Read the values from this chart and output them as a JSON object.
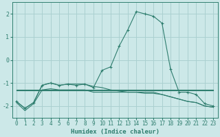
{
  "title": "",
  "xlabel": "Humidex (Indice chaleur)",
  "ylabel": "",
  "bg_color": "#cce8e8",
  "grid_color": "#aad0d0",
  "line_color": "#2e7d6e",
  "xlim": [
    -0.5,
    23.5
  ],
  "ylim": [
    -2.5,
    2.5
  ],
  "yticks": [
    -2,
    -1,
    0,
    1,
    2
  ],
  "xticks": [
    0,
    1,
    2,
    3,
    4,
    5,
    6,
    7,
    8,
    9,
    10,
    11,
    12,
    13,
    14,
    15,
    16,
    17,
    18,
    19,
    20,
    21,
    22,
    23
  ],
  "line1_x": [
    0,
    1,
    2,
    3,
    4,
    5,
    6,
    7,
    8,
    9,
    10,
    11,
    12,
    13,
    14,
    15,
    16,
    17,
    18,
    19,
    20,
    21,
    22,
    23
  ],
  "line1_y": [
    -1.8,
    -2.1,
    -1.85,
    -1.1,
    -1.0,
    -1.1,
    -1.05,
    -1.1,
    -1.05,
    -1.2,
    -0.45,
    -0.3,
    0.6,
    1.3,
    2.1,
    2.0,
    1.9,
    1.6,
    -0.4,
    -1.4,
    -1.4,
    -1.5,
    -1.9,
    -2.0
  ],
  "line2_x": [
    0,
    1,
    2,
    3,
    4,
    5,
    6,
    7,
    8,
    9,
    10,
    11,
    12,
    13,
    14,
    15,
    16,
    17,
    18,
    19,
    20,
    21,
    22,
    23
  ],
  "line2_y": [
    -1.28,
    -1.28,
    -1.28,
    -1.28,
    -1.28,
    -1.28,
    -1.28,
    -1.28,
    -1.28,
    -1.28,
    -1.28,
    -1.28,
    -1.28,
    -1.28,
    -1.28,
    -1.28,
    -1.28,
    -1.28,
    -1.28,
    -1.28,
    -1.28,
    -1.28,
    -1.28,
    -1.28
  ],
  "line3_x": [
    0,
    1,
    2,
    3,
    4,
    5,
    6,
    7,
    8,
    9,
    10,
    11,
    12,
    13,
    14,
    15,
    16,
    17,
    18,
    19,
    20,
    21,
    22,
    23
  ],
  "line3_y": [
    -1.85,
    -2.2,
    -1.9,
    -1.3,
    -1.25,
    -1.3,
    -1.3,
    -1.3,
    -1.3,
    -1.4,
    -1.4,
    -1.4,
    -1.4,
    -1.4,
    -1.4,
    -1.4,
    -1.4,
    -1.5,
    -1.6,
    -1.7,
    -1.8,
    -1.85,
    -2.0,
    -2.05
  ],
  "line4_x": [
    0,
    1,
    2,
    3,
    4,
    5,
    6,
    7,
    8,
    9,
    10,
    11,
    12,
    13,
    14,
    15,
    16,
    17,
    18,
    19,
    20,
    21,
    22,
    23
  ],
  "line4_y": [
    -1.8,
    -2.1,
    -1.85,
    -1.1,
    -1.0,
    -1.1,
    -1.05,
    -1.05,
    -1.05,
    -1.15,
    -1.2,
    -1.3,
    -1.35,
    -1.4,
    -1.4,
    -1.45,
    -1.45,
    -1.5,
    -1.6,
    -1.7,
    -1.8,
    -1.85,
    -2.0,
    -2.05
  ],
  "line5_x": [
    0,
    1,
    2,
    3,
    4,
    5,
    6,
    7,
    8,
    9,
    10,
    11,
    12,
    13,
    14,
    15,
    16,
    17,
    18,
    19,
    20,
    21,
    22,
    23
  ],
  "line5_y": [
    -1.32,
    -1.32,
    -1.32,
    -1.32,
    -1.32,
    -1.32,
    -1.32,
    -1.32,
    -1.32,
    -1.32,
    -1.32,
    -1.32,
    -1.32,
    -1.32,
    -1.32,
    -1.32,
    -1.32,
    -1.32,
    -1.32,
    -1.32,
    -1.32,
    -1.32,
    -1.32,
    -1.32
  ]
}
